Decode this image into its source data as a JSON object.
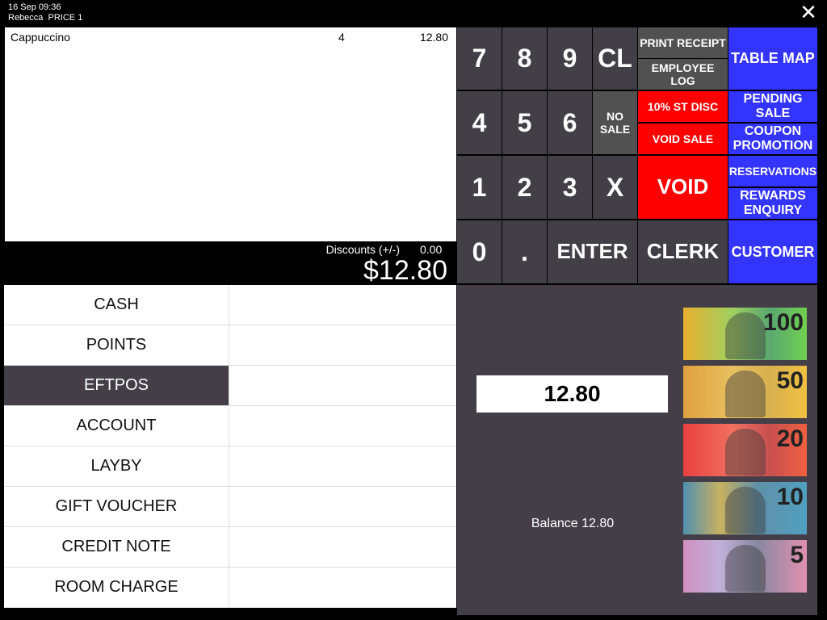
{
  "header": {
    "datetime": "16 Sep 09:36",
    "user_line": "Rebecca  PRICE 1"
  },
  "order": {
    "items": [
      {
        "name": "Cappuccino",
        "qty": "4",
        "amount": "12.80"
      }
    ],
    "discounts_label": "Discounts (+/-)",
    "discounts_value": "0.00",
    "total": "$12.80"
  },
  "keypad": {
    "k7": "7",
    "k8": "8",
    "k9": "9",
    "cl": "CL",
    "k4": "4",
    "k5": "5",
    "k6": "6",
    "no_sale": "NO SALE",
    "k1": "1",
    "k2": "2",
    "k3": "3",
    "x": "X",
    "k0": "0",
    "dot": ".",
    "enter": "ENTER",
    "clerk": "CLERK"
  },
  "functions": {
    "print_receipt": "PRINT RECEIPT",
    "employee_log": "EMPLOYEE LOG",
    "st_disc": "10% ST DISC",
    "void_sale": "VOID SALE",
    "void": "VOID",
    "table_map": "TABLE MAP",
    "pending_sale": "PENDING SALE",
    "coupon_promotion": "COUPON PROMOTION",
    "reservations": "RESERVATIONS",
    "rewards_enquiry": "REWARDS ENQUIRY",
    "customer": "CUSTOMER"
  },
  "payments": [
    "CASH",
    "POINTS",
    "EFTPOS",
    "ACCOUNT",
    "LAYBY",
    "GIFT VOUCHER",
    "CREDIT NOTE",
    "ROOM CHARGE"
  ],
  "selected_payment": "EFTPOS",
  "tender": {
    "amount": "12.80",
    "balance": "Balance 12.80"
  },
  "banknotes": [
    "100",
    "50",
    "20",
    "10",
    "5"
  ],
  "colors": {
    "key_dark": "#433f47",
    "key_gray": "#515151",
    "red": "#ff0000",
    "blue": "#3434ff",
    "panel": "#433e48"
  }
}
